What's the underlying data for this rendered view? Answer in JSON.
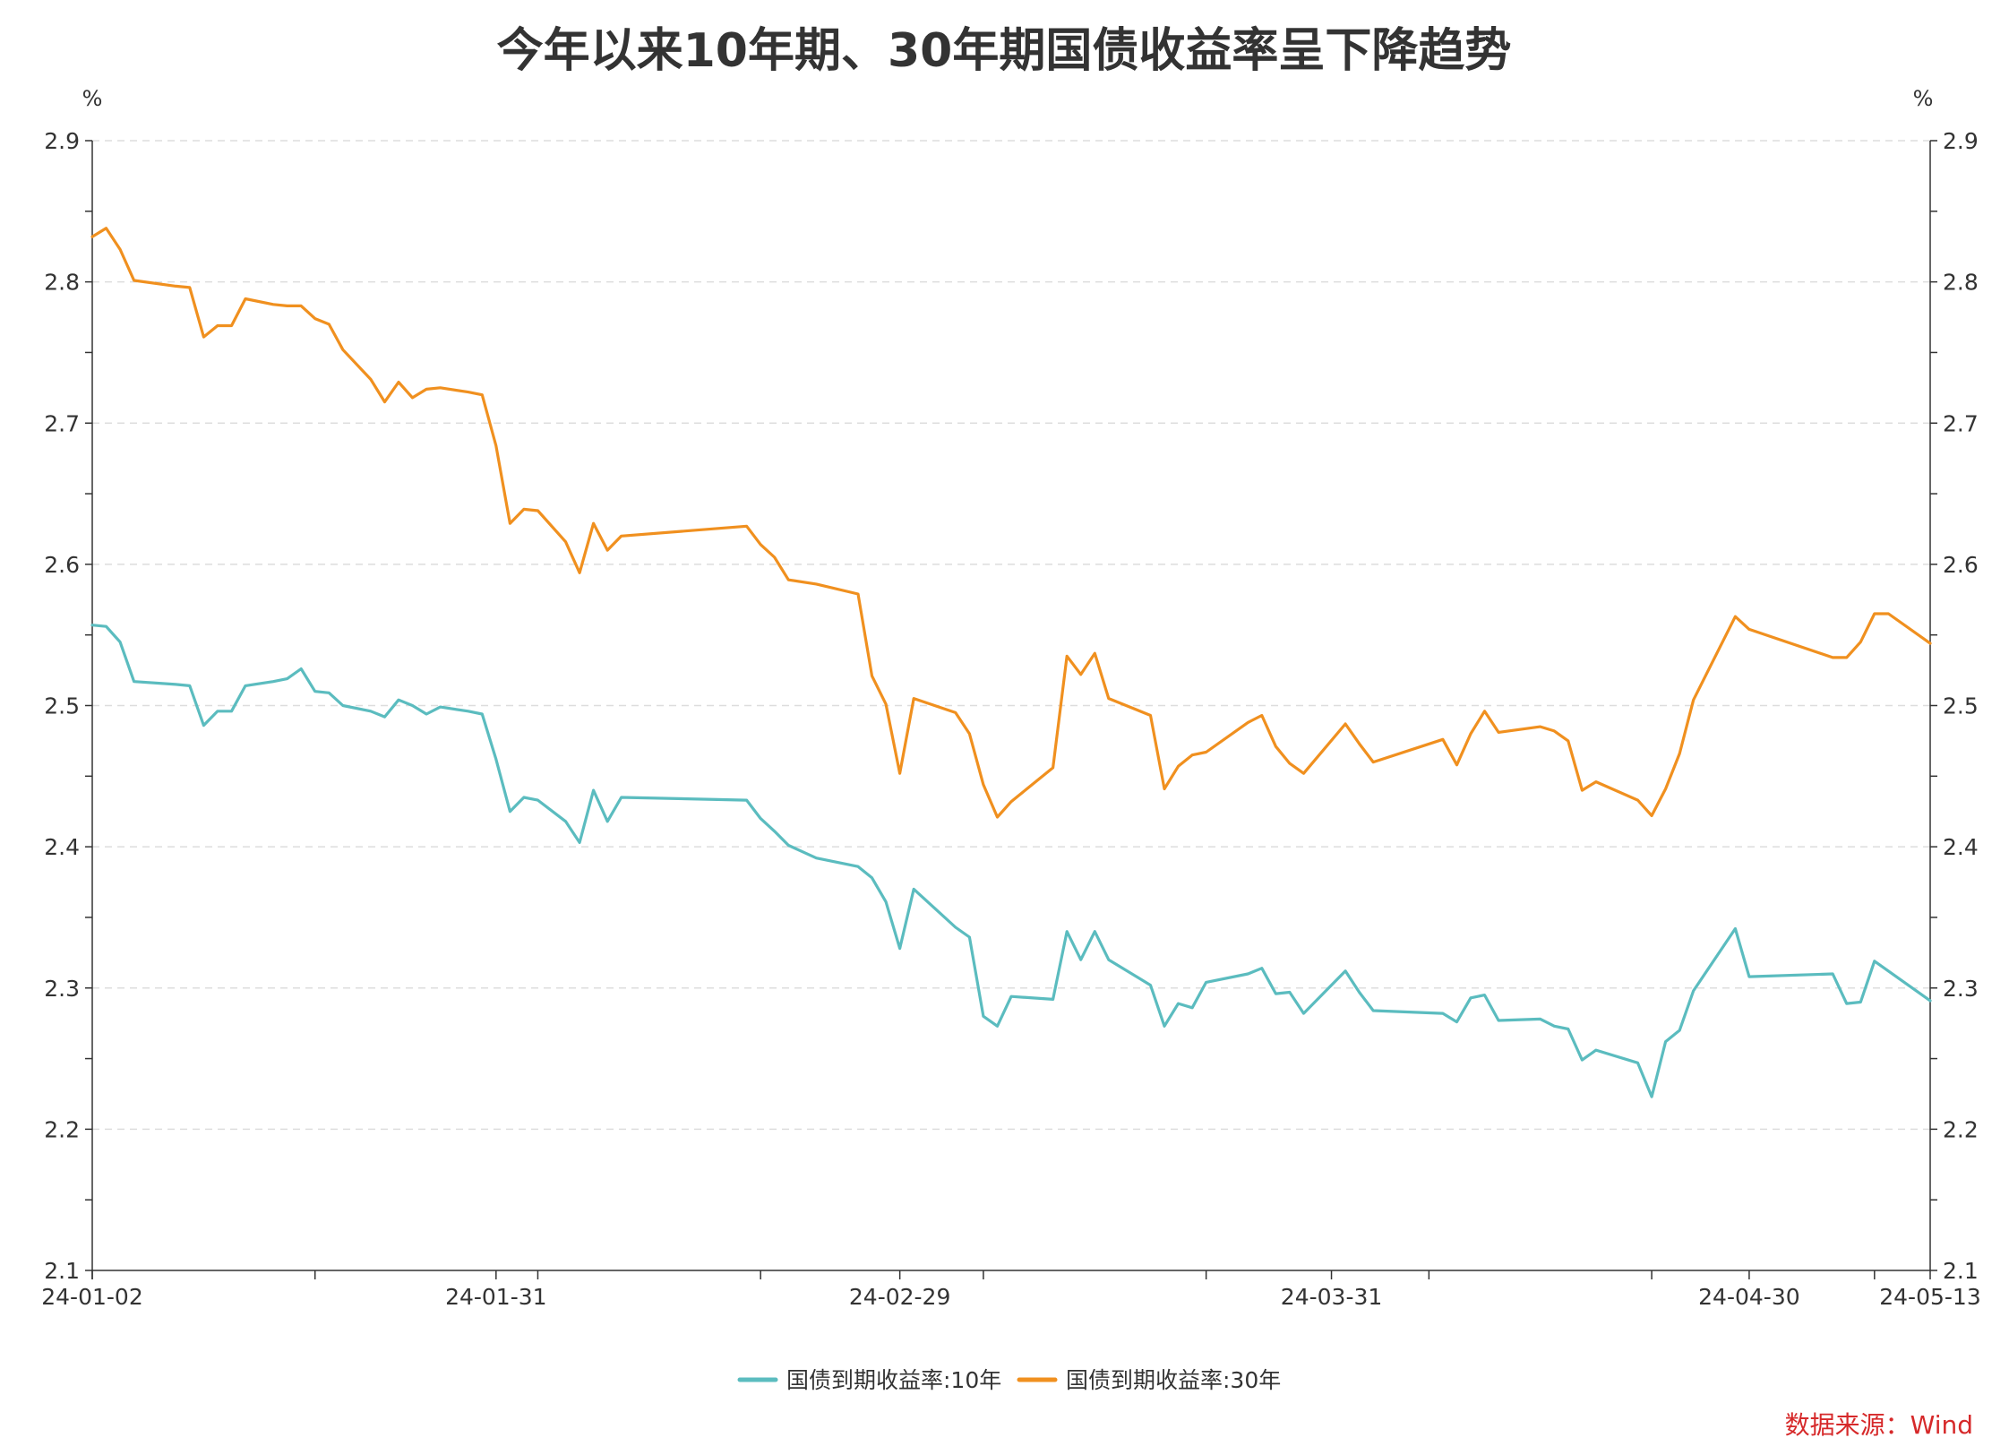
{
  "chart_data": {
    "type": "line",
    "title": "今年以来10年期、30年期国债收益率呈下降趋势",
    "ylabel_left": "%",
    "ylabel_right": "%",
    "ylim": [
      2.1,
      2.9
    ],
    "yticks": [
      "2.1",
      "2.2",
      "2.3",
      "2.4",
      "2.5",
      "2.6",
      "2.7",
      "2.8",
      "2.9"
    ],
    "xticks": [
      "24-01-02",
      "24-01-31",
      "24-02-29",
      "24-03-31",
      "24-04-30",
      "24-05-13"
    ],
    "grid": true,
    "legend_position": "bottom",
    "source": "数据来源：Wind",
    "colors": {
      "s10": "#5bbcbf",
      "s30": "#f0901f",
      "source": "#d6292a",
      "grid": "#dddddd",
      "axis": "#333333"
    },
    "series": [
      {
        "name": "国债到期收益率:10年",
        "color": "#5bbcbf",
        "points": [
          [
            "24-01-02",
            2.557
          ],
          [
            "24-01-03",
            2.556
          ],
          [
            "24-01-04",
            2.545
          ],
          [
            "24-01-05",
            2.517
          ],
          [
            "24-01-08",
            2.515
          ],
          [
            "24-01-09",
            2.514
          ],
          [
            "24-01-10",
            2.486
          ],
          [
            "24-01-11",
            2.496
          ],
          [
            "24-01-12",
            2.496
          ],
          [
            "24-01-13",
            2.514
          ],
          [
            "24-01-15",
            2.517
          ],
          [
            "24-01-16",
            2.519
          ],
          [
            "24-01-17",
            2.526
          ],
          [
            "24-01-18",
            2.51
          ],
          [
            "24-01-19",
            2.509
          ],
          [
            "24-01-20",
            2.5
          ],
          [
            "24-01-22",
            2.496
          ],
          [
            "24-01-23",
            2.492
          ],
          [
            "24-01-24",
            2.504
          ],
          [
            "24-01-25",
            2.5
          ],
          [
            "24-01-26",
            2.494
          ],
          [
            "24-01-27",
            2.499
          ],
          [
            "24-01-29",
            2.496
          ],
          [
            "24-01-30",
            2.494
          ],
          [
            "24-01-31",
            2.462
          ],
          [
            "24-02-01",
            2.425
          ],
          [
            "24-02-02",
            2.435
          ],
          [
            "24-02-03",
            2.433
          ],
          [
            "24-02-05",
            2.418
          ],
          [
            "24-02-06",
            2.403
          ],
          [
            "24-02-07",
            2.44
          ],
          [
            "24-02-08",
            2.418
          ],
          [
            "24-02-09",
            2.435
          ],
          [
            "24-02-18",
            2.433
          ],
          [
            "24-02-19",
            2.42
          ],
          [
            "24-02-20",
            2.411
          ],
          [
            "24-02-21",
            2.401
          ],
          [
            "24-02-23",
            2.392
          ],
          [
            "24-02-26",
            2.386
          ],
          [
            "24-02-27",
            2.378
          ],
          [
            "24-02-28",
            2.361
          ],
          [
            "24-02-29",
            2.328
          ],
          [
            "24-03-01",
            2.37
          ],
          [
            "24-03-04",
            2.343
          ],
          [
            "24-03-05",
            2.336
          ],
          [
            "24-03-06",
            2.28
          ],
          [
            "24-03-07",
            2.273
          ],
          [
            "24-03-08",
            2.294
          ],
          [
            "24-03-11",
            2.292
          ],
          [
            "24-03-12",
            2.34
          ],
          [
            "24-03-13",
            2.32
          ],
          [
            "24-03-14",
            2.34
          ],
          [
            "24-03-15",
            2.32
          ],
          [
            "24-03-18",
            2.302
          ],
          [
            "24-03-19",
            2.273
          ],
          [
            "24-03-20",
            2.289
          ],
          [
            "24-03-21",
            2.286
          ],
          [
            "24-03-22",
            2.304
          ],
          [
            "24-03-25",
            2.31
          ],
          [
            "24-03-26",
            2.314
          ],
          [
            "24-03-27",
            2.296
          ],
          [
            "24-03-28",
            2.297
          ],
          [
            "24-03-29",
            2.282
          ],
          [
            "24-04-01",
            2.312
          ],
          [
            "24-04-02",
            2.297
          ],
          [
            "24-04-03",
            2.284
          ],
          [
            "24-04-08",
            2.282
          ],
          [
            "24-04-09",
            2.276
          ],
          [
            "24-04-10",
            2.293
          ],
          [
            "24-04-11",
            2.295
          ],
          [
            "24-04-12",
            2.277
          ],
          [
            "24-04-15",
            2.278
          ],
          [
            "24-04-16",
            2.273
          ],
          [
            "24-04-17",
            2.271
          ],
          [
            "24-04-18",
            2.249
          ],
          [
            "24-04-19",
            2.256
          ],
          [
            "24-04-22",
            2.247
          ],
          [
            "24-04-23",
            2.223
          ],
          [
            "24-04-24",
            2.262
          ],
          [
            "24-04-25",
            2.27
          ],
          [
            "24-04-26",
            2.298
          ],
          [
            "24-04-29",
            2.342
          ],
          [
            "24-04-30",
            2.308
          ],
          [
            "24-05-06",
            2.31
          ],
          [
            "24-05-07",
            2.289
          ],
          [
            "24-05-08",
            2.29
          ],
          [
            "24-05-09",
            2.319
          ],
          [
            "24-05-13",
            2.291
          ]
        ]
      },
      {
        "name": "国债到期收益率:30年",
        "color": "#f0901f",
        "points": [
          [
            "24-01-02",
            2.832
          ],
          [
            "24-01-03",
            2.838
          ],
          [
            "24-01-04",
            2.823
          ],
          [
            "24-01-05",
            2.801
          ],
          [
            "24-01-08",
            2.797
          ],
          [
            "24-01-09",
            2.796
          ],
          [
            "24-01-10",
            2.761
          ],
          [
            "24-01-11",
            2.769
          ],
          [
            "24-01-12",
            2.769
          ],
          [
            "24-01-13",
            2.788
          ],
          [
            "24-01-15",
            2.784
          ],
          [
            "24-01-16",
            2.783
          ],
          [
            "24-01-17",
            2.783
          ],
          [
            "24-01-18",
            2.774
          ],
          [
            "24-01-19",
            2.77
          ],
          [
            "24-01-20",
            2.752
          ],
          [
            "24-01-22",
            2.731
          ],
          [
            "24-01-23",
            2.715
          ],
          [
            "24-01-24",
            2.729
          ],
          [
            "24-01-25",
            2.718
          ],
          [
            "24-01-26",
            2.724
          ],
          [
            "24-01-27",
            2.725
          ],
          [
            "24-01-29",
            2.722
          ],
          [
            "24-01-30",
            2.72
          ],
          [
            "24-01-31",
            2.684
          ],
          [
            "24-02-01",
            2.629
          ],
          [
            "24-02-02",
            2.639
          ],
          [
            "24-02-03",
            2.638
          ],
          [
            "24-02-05",
            2.616
          ],
          [
            "24-02-06",
            2.594
          ],
          [
            "24-02-07",
            2.629
          ],
          [
            "24-02-08",
            2.61
          ],
          [
            "24-02-09",
            2.62
          ],
          [
            "24-02-18",
            2.627
          ],
          [
            "24-02-19",
            2.614
          ],
          [
            "24-02-20",
            2.605
          ],
          [
            "24-02-21",
            2.589
          ],
          [
            "24-02-23",
            2.586
          ],
          [
            "24-02-26",
            2.579
          ],
          [
            "24-02-27",
            2.521
          ],
          [
            "24-02-28",
            2.501
          ],
          [
            "24-02-29",
            2.452
          ],
          [
            "24-03-01",
            2.505
          ],
          [
            "24-03-04",
            2.495
          ],
          [
            "24-03-05",
            2.48
          ],
          [
            "24-03-06",
            2.444
          ],
          [
            "24-03-07",
            2.421
          ],
          [
            "24-03-08",
            2.432
          ],
          [
            "24-03-11",
            2.456
          ],
          [
            "24-03-12",
            2.535
          ],
          [
            "24-03-13",
            2.522
          ],
          [
            "24-03-14",
            2.537
          ],
          [
            "24-03-15",
            2.505
          ],
          [
            "24-03-18",
            2.493
          ],
          [
            "24-03-19",
            2.441
          ],
          [
            "24-03-20",
            2.457
          ],
          [
            "24-03-21",
            2.465
          ],
          [
            "24-03-22",
            2.467
          ],
          [
            "24-03-25",
            2.488
          ],
          [
            "24-03-26",
            2.493
          ],
          [
            "24-03-27",
            2.471
          ],
          [
            "24-03-28",
            2.459
          ],
          [
            "24-03-29",
            2.452
          ],
          [
            "24-04-01",
            2.487
          ],
          [
            "24-04-02",
            2.473
          ],
          [
            "24-04-03",
            2.46
          ],
          [
            "24-04-08",
            2.476
          ],
          [
            "24-04-09",
            2.458
          ],
          [
            "24-04-10",
            2.48
          ],
          [
            "24-04-11",
            2.496
          ],
          [
            "24-04-12",
            2.481
          ],
          [
            "24-04-15",
            2.485
          ],
          [
            "24-04-16",
            2.482
          ],
          [
            "24-04-17",
            2.475
          ],
          [
            "24-04-18",
            2.44
          ],
          [
            "24-04-19",
            2.446
          ],
          [
            "24-04-22",
            2.433
          ],
          [
            "24-04-23",
            2.422
          ],
          [
            "24-04-24",
            2.441
          ],
          [
            "24-04-25",
            2.466
          ],
          [
            "24-04-26",
            2.504
          ],
          [
            "24-04-29",
            2.563
          ],
          [
            "24-04-30",
            2.554
          ],
          [
            "24-05-06",
            2.534
          ],
          [
            "24-05-07",
            2.534
          ],
          [
            "24-05-08",
            2.545
          ],
          [
            "24-05-09",
            2.565
          ],
          [
            "24-05-10",
            2.565
          ],
          [
            "24-05-13",
            2.544
          ]
        ]
      }
    ]
  }
}
